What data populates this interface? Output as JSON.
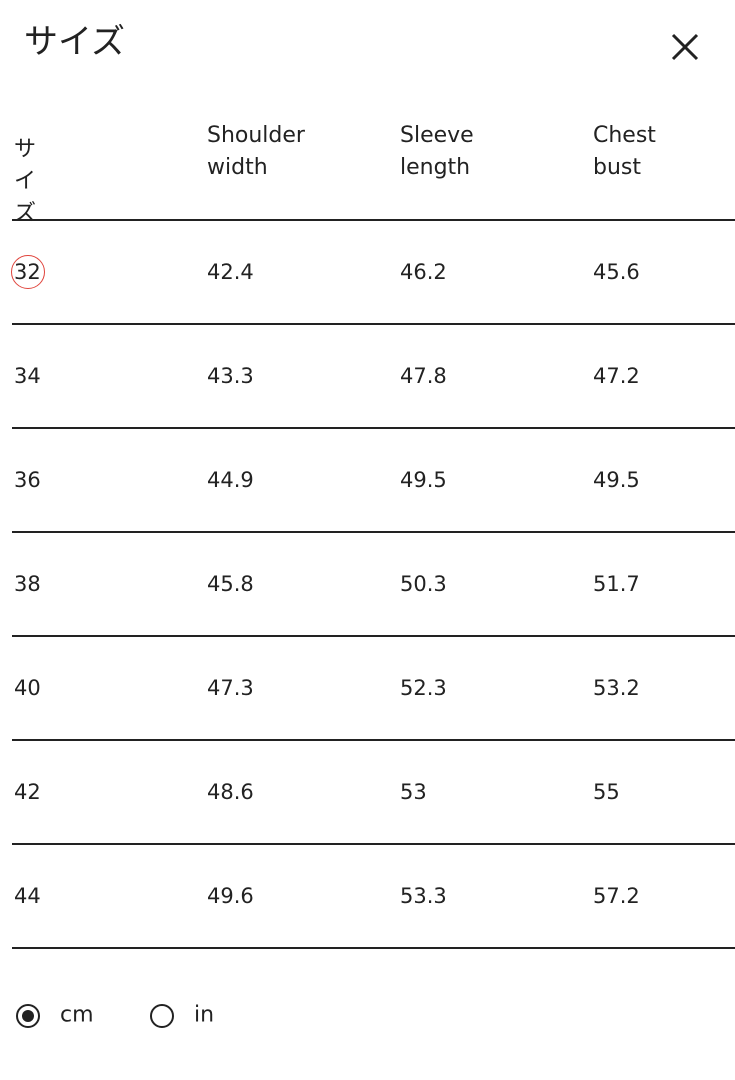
{
  "header": {
    "title": "サイズ"
  },
  "table": {
    "columns": [
      "サイズ",
      "Shoulder width",
      "Sleeve length",
      "Chest bust"
    ],
    "rows": [
      [
        "32",
        "42.4",
        "46.2",
        "45.6"
      ],
      [
        "34",
        "43.3",
        "47.8",
        "47.2"
      ],
      [
        "36",
        "44.9",
        "49.5",
        "49.5"
      ],
      [
        "38",
        "45.8",
        "50.3",
        "51.7"
      ],
      [
        "40",
        "47.3",
        "52.3",
        "53.2"
      ],
      [
        "42",
        "48.6",
        "53",
        "55"
      ],
      [
        "44",
        "49.6",
        "53.3",
        "57.2"
      ]
    ]
  },
  "units": [
    {
      "label": "cm",
      "selected": true
    },
    {
      "label": "in",
      "selected": false
    }
  ]
}
